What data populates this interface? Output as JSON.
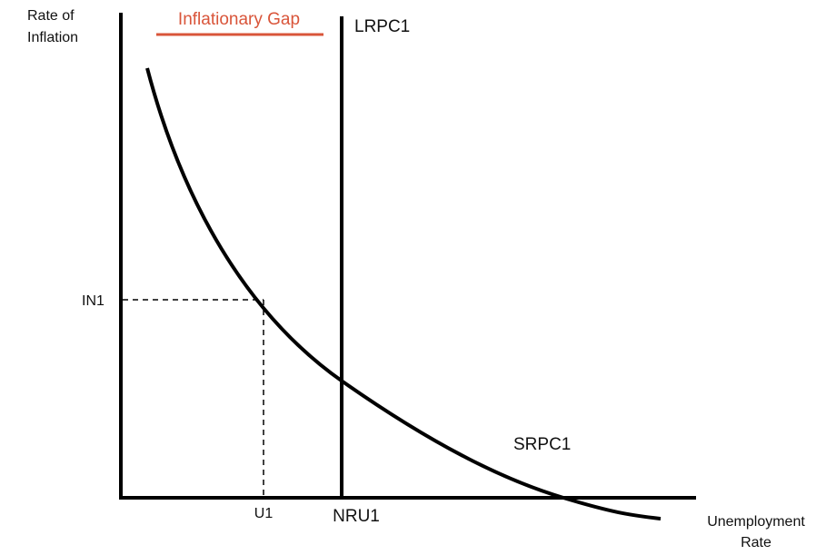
{
  "axes": {
    "y_label": [
      "Rate of",
      "Inflation"
    ],
    "x_label": [
      "Unemployment",
      "Rate"
    ]
  },
  "gap_label": "Inflationary Gap",
  "curves": {
    "long_run": "LRPC1",
    "short_run": "SRPC1"
  },
  "points": {
    "inflation": "IN1",
    "unemployment": "U1",
    "natural_rate": "NRU1"
  }
}
